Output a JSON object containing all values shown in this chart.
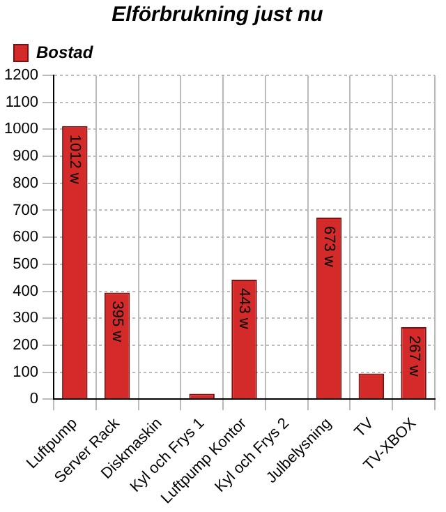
{
  "chart_data": {
    "type": "bar",
    "title": "Elförbrukning just nu",
    "categories": [
      "Luftpump",
      "Server Rack",
      "Diskmaskin",
      "Kyl och Frys 1",
      "Luftpump Kontor",
      "Kyl och Frys 2",
      "Julbelysning",
      "TV",
      "TV-XBOX"
    ],
    "series": [
      {
        "name": "Bostad",
        "color": "#d42a2a",
        "values": [
          1012,
          395,
          0,
          20,
          443,
          0,
          673,
          95,
          267
        ],
        "value_labels": [
          "1012 w",
          "395 w",
          null,
          null,
          "443 w",
          null,
          "673 w",
          null,
          "267 w"
        ]
      }
    ],
    "ylim": [
      0,
      1200
    ],
    "yticks": [
      0,
      100,
      200,
      300,
      400,
      500,
      600,
      700,
      800,
      900,
      1000,
      1100,
      1200
    ],
    "grid": true,
    "legend": "top left"
  }
}
